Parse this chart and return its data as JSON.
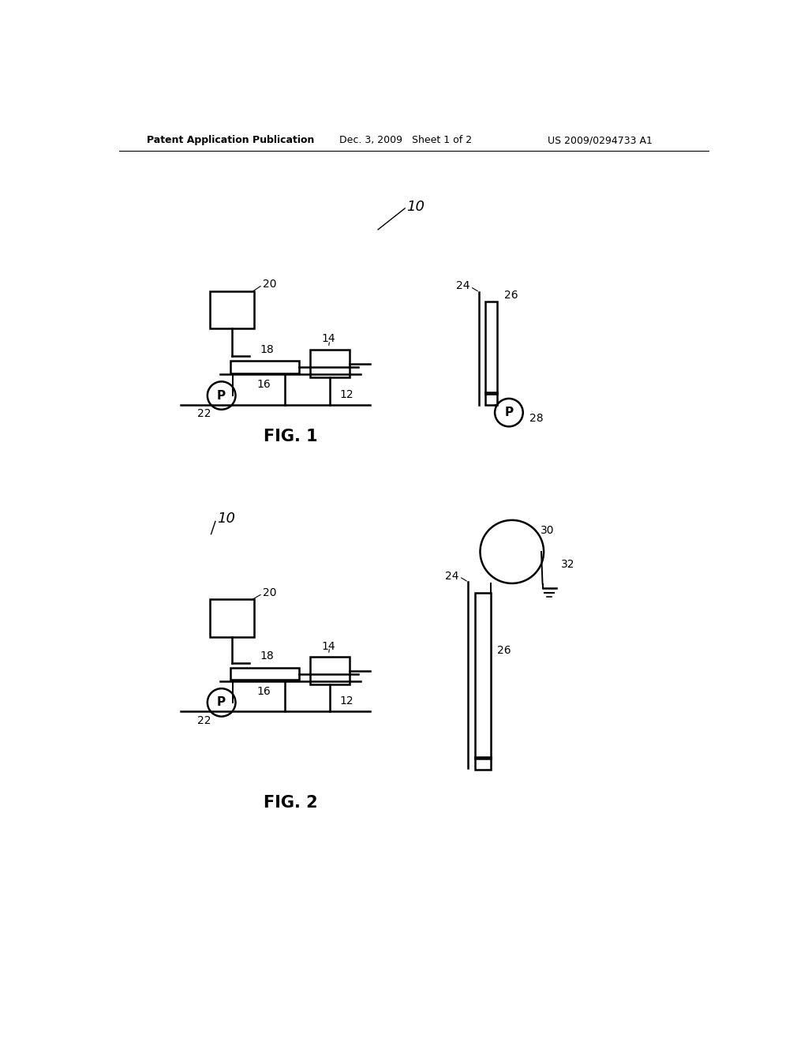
{
  "background_color": "#ffffff",
  "header_left": "Patent Application Publication",
  "header_mid": "Dec. 3, 2009   Sheet 1 of 2",
  "header_right": "US 2009/0294733 A1",
  "fig1_label": "FIG. 1",
  "fig2_label": "FIG. 2"
}
